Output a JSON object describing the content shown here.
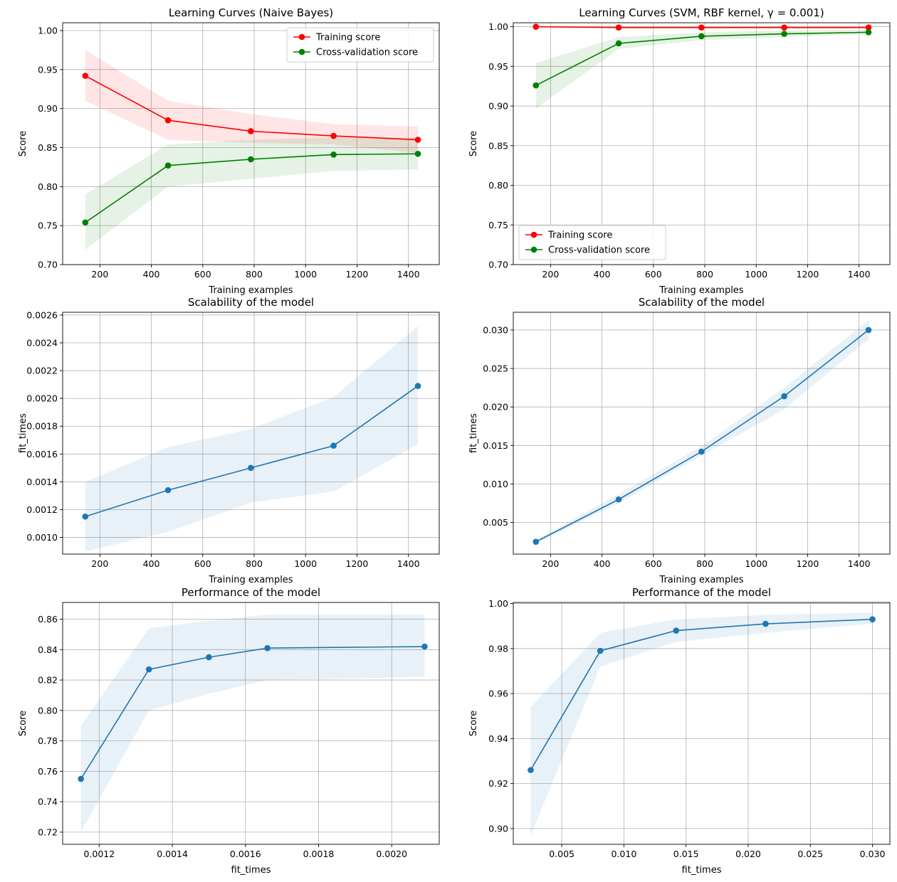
{
  "figure": {
    "name": "Learning curve and scalability comparison"
  },
  "chart_data": [
    {
      "type": "line",
      "title": "Learning Curves (Naive Bayes)",
      "xlabel": "Training examples",
      "ylabel": "Score",
      "xlim": [
        55,
        1520
      ],
      "ylim": [
        0.7,
        1.01
      ],
      "xticks": [
        200,
        400,
        600,
        800,
        1000,
        1200,
        1400
      ],
      "xtick_labels": [
        "200",
        "400",
        "600",
        "800",
        "1000",
        "1200",
        "1400"
      ],
      "yticks": [
        0.7,
        0.75,
        0.8,
        0.85,
        0.9,
        0.95,
        1.0
      ],
      "ytick_labels": [
        "0.70",
        "0.75",
        "0.80",
        "0.85",
        "0.90",
        "0.95",
        "1.00"
      ],
      "grid": true,
      "legend": "top-right",
      "x": [
        143,
        465,
        787,
        1109,
        1437
      ],
      "series": [
        {
          "name": "Training score",
          "color": "#ff0000",
          "values": [
            0.942,
            0.885,
            0.871,
            0.865,
            0.86
          ],
          "band_low": [
            0.91,
            0.86,
            0.856,
            0.854,
            0.843
          ],
          "band_high": [
            0.975,
            0.91,
            0.893,
            0.88,
            0.877
          ]
        },
        {
          "name": "Cross-validation score",
          "color": "#008000",
          "values": [
            0.754,
            0.827,
            0.835,
            0.841,
            0.842
          ],
          "band_low": [
            0.719,
            0.8,
            0.81,
            0.82,
            0.822
          ],
          "band_high": [
            0.79,
            0.854,
            0.86,
            0.863,
            0.863
          ]
        }
      ]
    },
    {
      "type": "line",
      "title": "Learning Curves (SVM, RBF kernel, γ = 0.001)",
      "xlabel": "Training examples",
      "ylabel": "Score",
      "xlim": [
        55,
        1520
      ],
      "ylim": [
        0.7,
        1.005
      ],
      "xticks": [
        200,
        400,
        600,
        800,
        1000,
        1200,
        1400
      ],
      "xtick_labels": [
        "200",
        "400",
        "600",
        "800",
        "1000",
        "1200",
        "1400"
      ],
      "yticks": [
        0.7,
        0.75,
        0.8,
        0.85,
        0.9,
        0.95,
        1.0
      ],
      "ytick_labels": [
        "0.70",
        "0.75",
        "0.80",
        "0.85",
        "0.90",
        "0.95",
        "1.00"
      ],
      "grid": true,
      "legend": "bottom-left",
      "x": [
        143,
        465,
        787,
        1109,
        1437
      ],
      "series": [
        {
          "name": "Training score",
          "color": "#ff0000",
          "values": [
            1.0,
            0.999,
            0.999,
            0.999,
            0.999
          ],
          "band_low": [
            1.0,
            0.998,
            0.998,
            0.998,
            0.998
          ],
          "band_high": [
            1.0,
            1.0,
            1.0,
            1.0,
            1.0
          ]
        },
        {
          "name": "Cross-validation score",
          "color": "#008000",
          "values": [
            0.926,
            0.979,
            0.988,
            0.991,
            0.993
          ],
          "band_low": [
            0.897,
            0.972,
            0.983,
            0.987,
            0.991
          ],
          "band_high": [
            0.954,
            0.987,
            0.993,
            0.995,
            0.996
          ]
        }
      ]
    },
    {
      "type": "line",
      "title": "Scalability of the model",
      "xlabel": "Training examples",
      "ylabel": "fit_times",
      "xlim": [
        55,
        1520
      ],
      "ylim": [
        0.00088,
        0.00262
      ],
      "xticks": [
        200,
        400,
        600,
        800,
        1000,
        1200,
        1400
      ],
      "xtick_labels": [
        "200",
        "400",
        "600",
        "800",
        "1000",
        "1200",
        "1400"
      ],
      "yticks": [
        0.001,
        0.0012,
        0.0014,
        0.0016,
        0.0018,
        0.002,
        0.0022,
        0.0024,
        0.0026
      ],
      "ytick_labels": [
        "0.0010",
        "0.0012",
        "0.0014",
        "0.0016",
        "0.0018",
        "0.0020",
        "0.0022",
        "0.0024",
        "0.0026"
      ],
      "grid": true,
      "x": [
        143,
        465,
        787,
        1109,
        1437
      ],
      "series": [
        {
          "name": "fit_times",
          "color": "#1f77b4",
          "values": [
            0.00115,
            0.00134,
            0.0015,
            0.00166,
            0.00209
          ],
          "band_low": [
            0.0009,
            0.00104,
            0.00125,
            0.00133,
            0.00167
          ],
          "band_high": [
            0.0014,
            0.00165,
            0.00178,
            0.00201,
            0.00252
          ]
        }
      ]
    },
    {
      "type": "line",
      "title": "Scalability of the model",
      "xlabel": "Training examples",
      "ylabel": "fit_times",
      "xlim": [
        55,
        1520
      ],
      "ylim": [
        0.0009,
        0.0323
      ],
      "xticks": [
        200,
        400,
        600,
        800,
        1000,
        1200,
        1400
      ],
      "xtick_labels": [
        "200",
        "400",
        "600",
        "800",
        "1000",
        "1200",
        "1400"
      ],
      "yticks": [
        0.005,
        0.01,
        0.015,
        0.02,
        0.025,
        0.03
      ],
      "ytick_labels": [
        "0.005",
        "0.010",
        "0.015",
        "0.020",
        "0.025",
        "0.030"
      ],
      "grid": true,
      "x": [
        143,
        465,
        787,
        1109,
        1437
      ],
      "series": [
        {
          "name": "fit_times",
          "color": "#1f77b4",
          "values": [
            0.0025,
            0.008,
            0.0142,
            0.0214,
            0.03
          ],
          "band_low": [
            0.0023,
            0.0075,
            0.0137,
            0.0197,
            0.0288
          ],
          "band_high": [
            0.0027,
            0.0087,
            0.0149,
            0.0225,
            0.0313
          ]
        }
      ]
    },
    {
      "type": "line",
      "title": "Performance of the model",
      "xlabel": "fit_times",
      "ylabel": "Score",
      "xlim": [
        0.0011,
        0.00213
      ],
      "ylim": [
        0.712,
        0.871
      ],
      "xticks": [
        0.0012,
        0.0014,
        0.0016,
        0.0018,
        0.002
      ],
      "xtick_labels": [
        "0.0012",
        "0.0014",
        "0.0016",
        "0.0018",
        "0.0020"
      ],
      "yticks": [
        0.72,
        0.74,
        0.76,
        0.78,
        0.8,
        0.82,
        0.84,
        0.86
      ],
      "ytick_labels": [
        "0.72",
        "0.74",
        "0.76",
        "0.78",
        "0.80",
        "0.82",
        "0.84",
        "0.86"
      ],
      "grid": true,
      "x": [
        0.00115,
        0.001336,
        0.0015,
        0.00166,
        0.00209
      ],
      "series": [
        {
          "name": "Score",
          "color": "#1f77b4",
          "values": [
            0.755,
            0.827,
            0.835,
            0.841,
            0.842
          ],
          "band_low": [
            0.72,
            0.8,
            0.811,
            0.82,
            0.822
          ],
          "band_high": [
            0.79,
            0.854,
            0.859,
            0.863,
            0.863
          ]
        }
      ]
    },
    {
      "type": "line",
      "title": "Performance of the model",
      "xlabel": "fit_times",
      "ylabel": "Score",
      "xlim": [
        0.0011,
        0.0314
      ],
      "ylim": [
        0.893,
        1.0005
      ],
      "xticks": [
        0.005,
        0.01,
        0.015,
        0.02,
        0.025,
        0.03
      ],
      "xtick_labels": [
        "0.005",
        "0.010",
        "0.015",
        "0.020",
        "0.025",
        "0.030"
      ],
      "yticks": [
        0.9,
        0.92,
        0.94,
        0.96,
        0.98,
        1.0
      ],
      "ytick_labels": [
        "0.90",
        "0.92",
        "0.94",
        "0.96",
        "0.98",
        "1.00"
      ],
      "grid": true,
      "x": [
        0.0025,
        0.0081,
        0.0142,
        0.0214,
        0.03
      ],
      "series": [
        {
          "name": "Score",
          "color": "#1f77b4",
          "values": [
            0.926,
            0.979,
            0.988,
            0.991,
            0.993
          ],
          "band_low": [
            0.897,
            0.972,
            0.983,
            0.987,
            0.991
          ],
          "band_high": [
            0.954,
            0.987,
            0.993,
            0.995,
            0.996
          ]
        }
      ]
    }
  ]
}
